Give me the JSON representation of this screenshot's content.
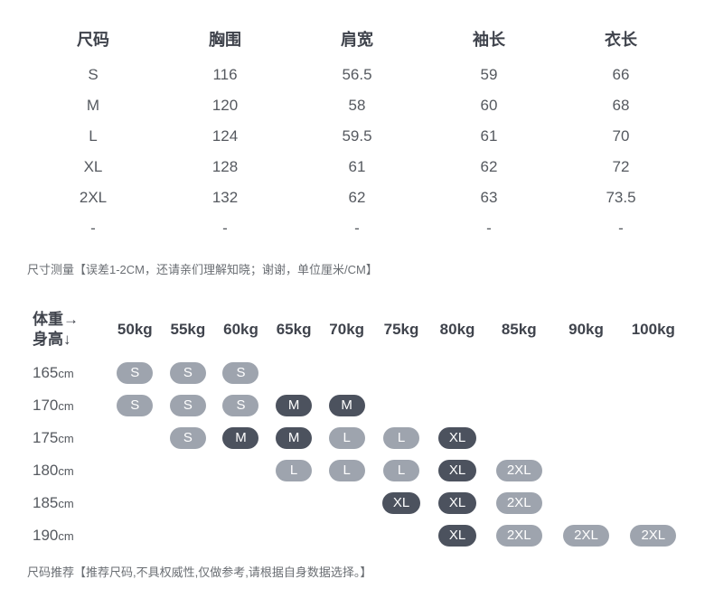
{
  "sizeTable": {
    "headers": [
      "尺码",
      "胸围",
      "肩宽",
      "袖长",
      "衣长"
    ],
    "rows": [
      [
        "S",
        "116",
        "56.5",
        "59",
        "66"
      ],
      [
        "M",
        "120",
        "58",
        "60",
        "68"
      ],
      [
        "L",
        "124",
        "59.5",
        "61",
        "70"
      ],
      [
        "XL",
        "128",
        "61",
        "62",
        "72"
      ],
      [
        "2XL",
        "132",
        "62",
        "63",
        "73.5"
      ],
      [
        "-",
        "-",
        "-",
        "-",
        "-"
      ]
    ]
  },
  "measureNote": "尺寸测量【误差1-2CM，还请亲们理解知晓；谢谢，单位厘米/CM】",
  "reco": {
    "cornerLine1": "体重→",
    "cornerLine2": "身高↓",
    "weights": [
      "50kg",
      "55kg",
      "60kg",
      "65kg",
      "70kg",
      "75kg",
      "80kg",
      "85kg",
      "90kg",
      "100kg"
    ],
    "heights": [
      "165",
      "170",
      "175",
      "180",
      "185",
      "190"
    ],
    "heightUnit": "cm",
    "grid": [
      [
        {
          "t": "S",
          "s": "light"
        },
        {
          "t": "S",
          "s": "light"
        },
        {
          "t": "S",
          "s": "light"
        },
        null,
        null,
        null,
        null,
        null,
        null,
        null
      ],
      [
        {
          "t": "S",
          "s": "light"
        },
        {
          "t": "S",
          "s": "light"
        },
        {
          "t": "S",
          "s": "light"
        },
        {
          "t": "M",
          "s": "dark"
        },
        {
          "t": "M",
          "s": "dark"
        },
        null,
        null,
        null,
        null,
        null
      ],
      [
        null,
        {
          "t": "S",
          "s": "light"
        },
        {
          "t": "M",
          "s": "dark"
        },
        {
          "t": "M",
          "s": "dark"
        },
        {
          "t": "L",
          "s": "light"
        },
        {
          "t": "L",
          "s": "light"
        },
        {
          "t": "XL",
          "s": "dark"
        },
        null,
        null,
        null
      ],
      [
        null,
        null,
        null,
        {
          "t": "L",
          "s": "light"
        },
        {
          "t": "L",
          "s": "light"
        },
        {
          "t": "L",
          "s": "light"
        },
        {
          "t": "XL",
          "s": "dark"
        },
        {
          "t": "2XL",
          "s": "light"
        },
        null,
        null
      ],
      [
        null,
        null,
        null,
        null,
        null,
        {
          "t": "XL",
          "s": "dark"
        },
        {
          "t": "XL",
          "s": "dark"
        },
        {
          "t": "2XL",
          "s": "light"
        },
        null,
        null
      ],
      [
        null,
        null,
        null,
        null,
        null,
        null,
        {
          "t": "XL",
          "s": "dark"
        },
        {
          "t": "2XL",
          "s": "light"
        },
        {
          "t": "2XL",
          "s": "light"
        },
        {
          "t": "2XL",
          "s": "light"
        }
      ]
    ]
  },
  "recoNote": "尺码推荐【推荐尺码,不具权威性,仅做参考,请根据自身数据选择。】",
  "colors": {
    "pillLight": "#9ea4ae",
    "pillDark": "#4c525e",
    "background": "#ffffff"
  }
}
